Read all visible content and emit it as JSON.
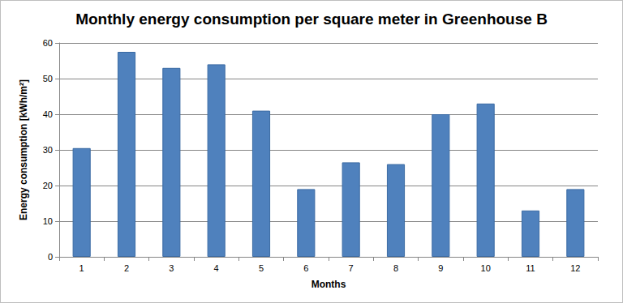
{
  "chart_data": {
    "type": "bar",
    "title": "Monthly energy consumption per square meter in Greenhouse B",
    "x_label": "Months",
    "y_label": "Energy consumption [kWh/m²]",
    "categories": [
      "1",
      "2",
      "3",
      "4",
      "5",
      "6",
      "7",
      "8",
      "9",
      "10",
      "11",
      "12"
    ],
    "values": [
      30.5,
      57.5,
      53,
      54,
      41,
      19,
      26.5,
      26,
      40,
      43,
      13,
      19
    ],
    "color": "#4f81bd",
    "ylim": [
      0,
      60
    ],
    "yticks": [
      0,
      10,
      20,
      30,
      40,
      50,
      60
    ],
    "grid": true
  }
}
